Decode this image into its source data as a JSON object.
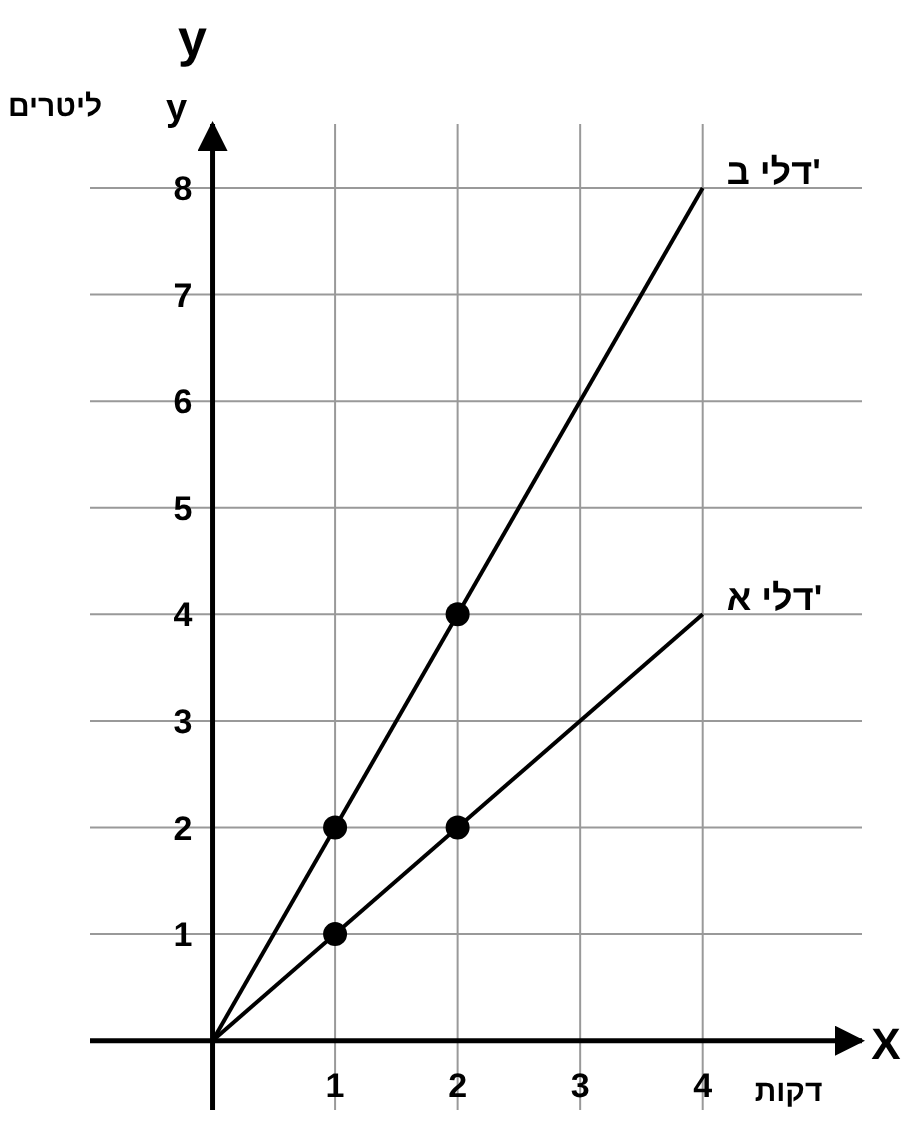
{
  "chart_data": {
    "type": "line",
    "xlabel": "דקות",
    "ylabel": "ליטרים",
    "annotations": [
      "y",
      "y",
      "X"
    ],
    "xlim": [
      -1,
      5.3
    ],
    "ylim": [
      -0.65,
      8.6
    ],
    "xticks": [
      1,
      2,
      3,
      4
    ],
    "yticks": [
      1,
      2,
      3,
      4,
      5,
      6,
      7,
      8
    ],
    "grid": true,
    "legend": false,
    "marker": "none",
    "line_style": "solid",
    "series": [
      {
        "name": "דלי ב'",
        "color": "#000000",
        "x": [
          0,
          4
        ],
        "values": [
          0,
          8
        ]
      },
      {
        "name": "דלי א'",
        "color": "#000000",
        "x": [
          0,
          4
        ],
        "values": [
          0,
          4
        ]
      },
      {
        "type": "scatter",
        "marker": "circle",
        "color": "#000000",
        "x": [
          1,
          2
        ],
        "values": [
          2,
          4
        ]
      },
      {
        "type": "scatter",
        "marker": "circle",
        "color": "#000000",
        "x": [
          1,
          2
        ],
        "values": [
          1,
          2
        ]
      }
    ]
  }
}
